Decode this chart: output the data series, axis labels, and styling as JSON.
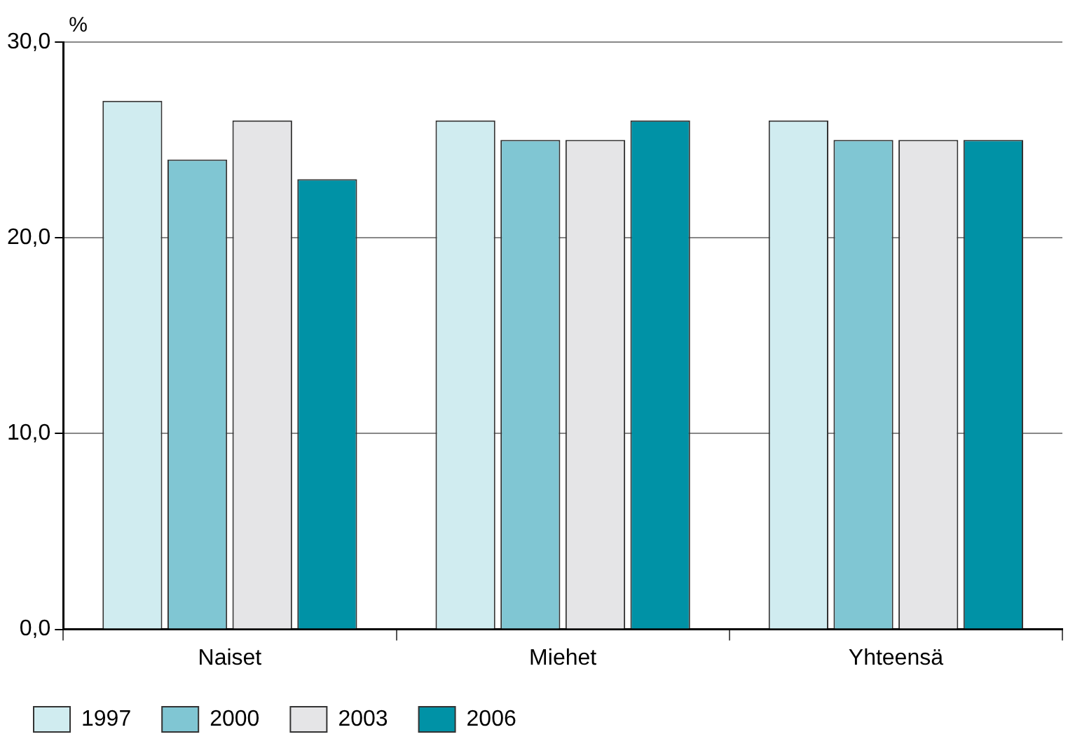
{
  "chart_data": {
    "type": "bar",
    "ylabel": "%",
    "categories": [
      "Naiset",
      "Miehet",
      "Yhteensä"
    ],
    "series": [
      {
        "name": "1997",
        "color": "#d0ecf0",
        "values": [
          27,
          26,
          26
        ]
      },
      {
        "name": "2000",
        "color": "#80c6d3",
        "values": [
          24,
          25,
          25
        ]
      },
      {
        "name": "2003",
        "color": "#e5e5e7",
        "values": [
          26,
          25,
          25
        ]
      },
      {
        "name": "2006",
        "color": "#0092a6",
        "values": [
          23,
          26,
          25
        ]
      }
    ],
    "ylim": [
      0,
      30
    ],
    "yticks": [
      {
        "value": 0,
        "label": "0,0"
      },
      {
        "value": 10,
        "label": "10,0"
      },
      {
        "value": 20,
        "label": "20,0"
      },
      {
        "value": 30,
        "label": "30,0"
      }
    ],
    "grid": "y",
    "legend": "bottom left"
  }
}
